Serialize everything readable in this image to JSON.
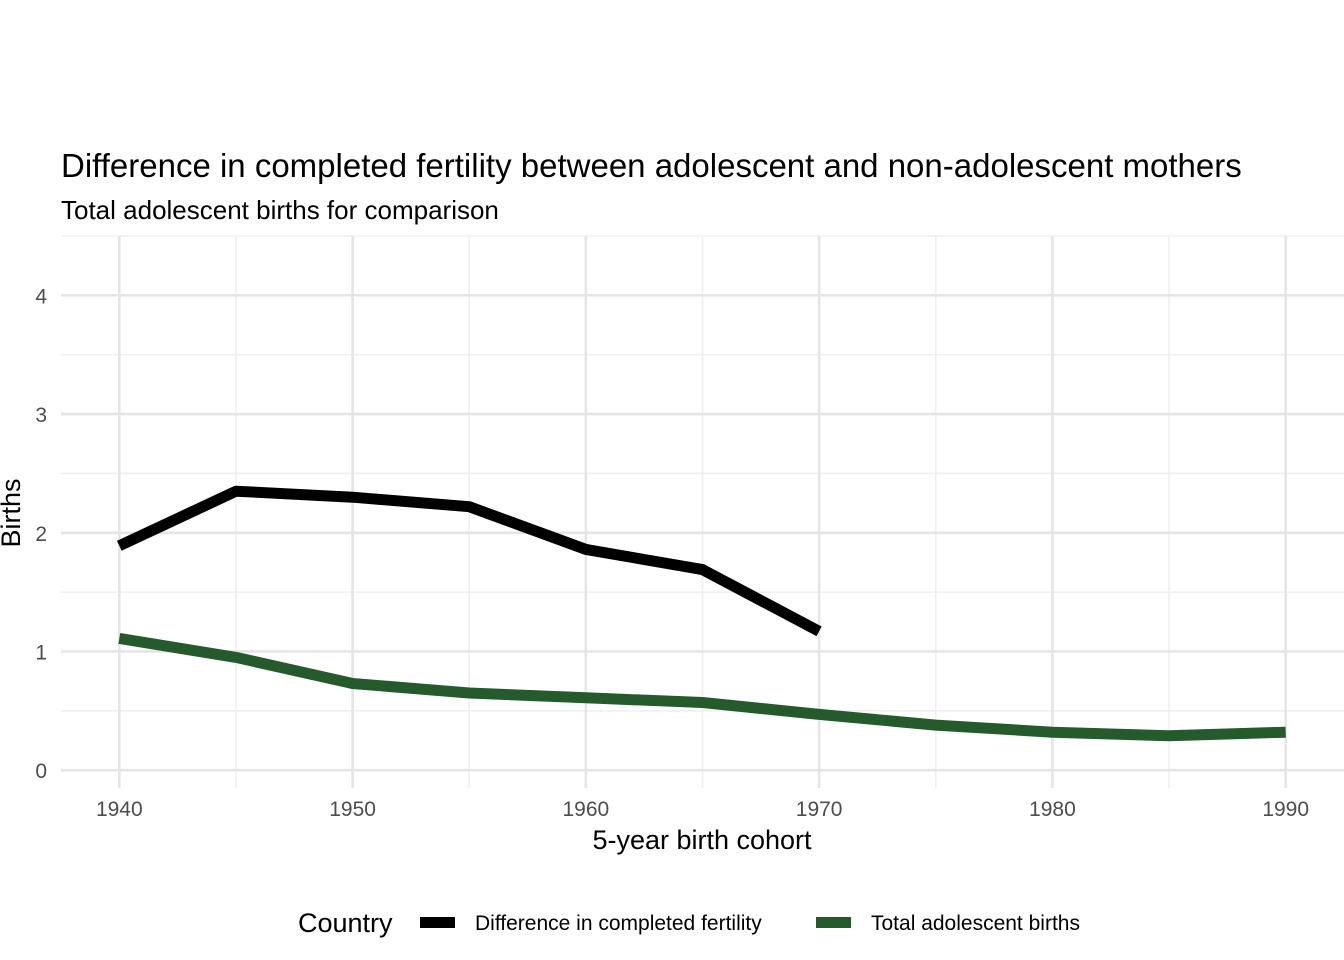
{
  "chart_data": {
    "type": "line",
    "title": "Difference in completed fertility between adolescent and non-adolescent mothers",
    "subtitle": "Total adolescent births for comparison",
    "xlabel": "5-year birth cohort",
    "ylabel": "Births",
    "xlim": [
      1937.5,
      1992.5
    ],
    "ylim": [
      -0.15,
      4.5
    ],
    "x_ticks": [
      1940,
      1950,
      1960,
      1970,
      1980,
      1990
    ],
    "x_minor": [
      1945,
      1955,
      1965,
      1975,
      1985
    ],
    "y_ticks": [
      0,
      1,
      2,
      3,
      4
    ],
    "y_minor": [
      0.5,
      1.5,
      2.5,
      3.5,
      4.5
    ],
    "grid": true,
    "legend": {
      "title": "Country",
      "position": "bottom"
    },
    "series": [
      {
        "name": "Difference in completed fertility",
        "color": "#000000",
        "x": [
          1940,
          1945,
          1950,
          1955,
          1960,
          1965,
          1970
        ],
        "values": [
          1.89,
          2.35,
          2.3,
          2.22,
          1.86,
          1.69,
          1.17
        ]
      },
      {
        "name": "Total adolescent births",
        "color": "#245a2c",
        "x": [
          1940,
          1945,
          1950,
          1955,
          1960,
          1965,
          1970,
          1975,
          1980,
          1985,
          1990
        ],
        "values": [
          1.11,
          0.95,
          0.73,
          0.65,
          0.61,
          0.57,
          0.47,
          0.38,
          0.32,
          0.29,
          0.32
        ]
      }
    ]
  }
}
